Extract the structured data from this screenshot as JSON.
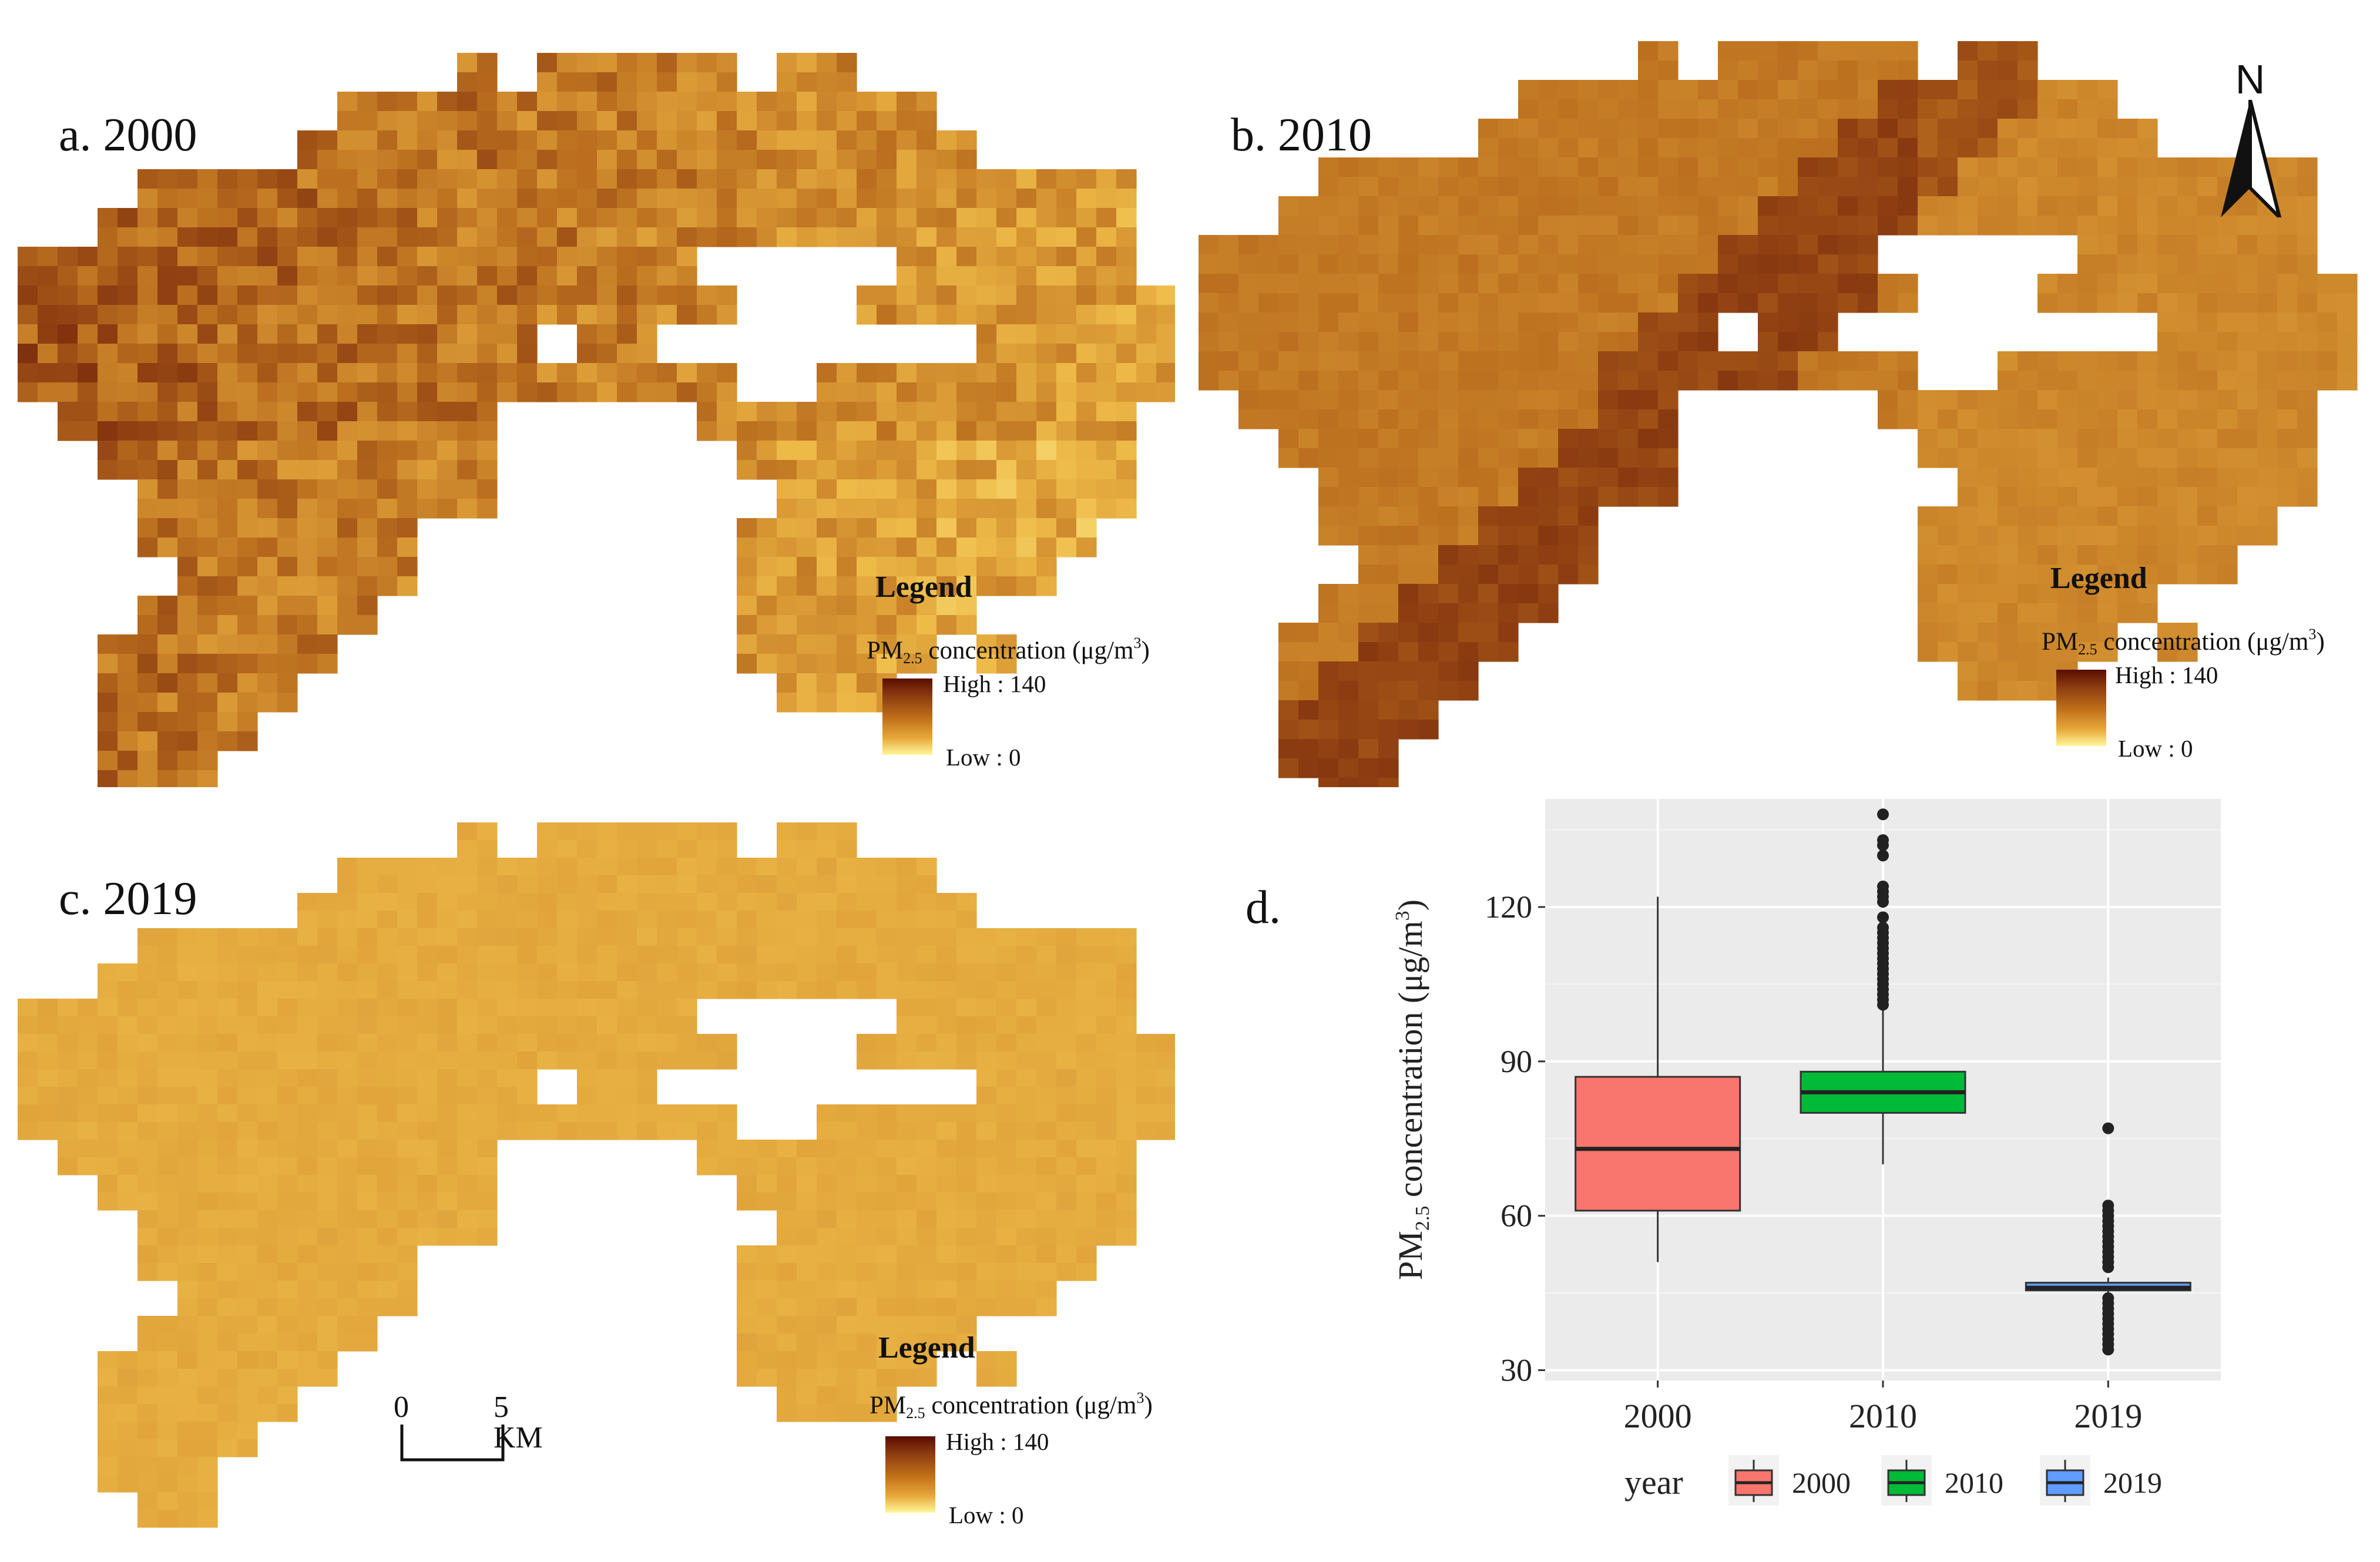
{
  "panels": [
    {
      "id": "a",
      "label": "a. 2000",
      "year": "2000"
    },
    {
      "id": "b",
      "label": "b. 2010",
      "year": "2010"
    },
    {
      "id": "c",
      "label": "c. 2019",
      "year": "2019"
    }
  ],
  "legend": {
    "heading": "Legend",
    "title_prefix": "PM",
    "title_sub": "2.5",
    "title_mid": " concentration (μg/m",
    "title_sup": "3",
    "title_end": ")",
    "high": "High : 140",
    "low": "Low : 0",
    "colors": [
      "#5a0d00",
      "#8a3a10",
      "#c07018",
      "#e8a83a",
      "#fff79a"
    ]
  },
  "north_arrow": {
    "label": "N"
  },
  "scale_bar": {
    "zero": "0",
    "five": "5 KM"
  },
  "panel_d_label": "d.",
  "chart_data": {
    "type": "boxplot",
    "title": "",
    "xlabel": "",
    "ylabel_prefix": "PM",
    "ylabel_sub": "2.5",
    "ylabel_mid": " concentration (μg/m",
    "ylabel_sup": "3",
    "ylabel_end": ")",
    "ylim": [
      28,
      141
    ],
    "yticks": [
      30,
      60,
      90,
      120
    ],
    "categories": [
      "2000",
      "2010",
      "2019"
    ],
    "series": [
      {
        "name": "2000",
        "color": "#f8766d",
        "min": 51,
        "q1": 61,
        "median": 73,
        "q3": 87,
        "max": 122,
        "outliers": []
      },
      {
        "name": "2010",
        "color": "#00ba38",
        "min": 70,
        "q1": 80,
        "median": 84,
        "q3": 88,
        "max": 100,
        "outliers": [
          101,
          102,
          103,
          104,
          105,
          106,
          107,
          108,
          109,
          110,
          111,
          112,
          113,
          114,
          115,
          116,
          118,
          121,
          122,
          123,
          124,
          130,
          132,
          133,
          138
        ]
      },
      {
        "name": "2019",
        "color": "#619cff",
        "min": 45,
        "q1": 45.5,
        "median": 46,
        "q3": 47,
        "max": 48,
        "outliers": [
          34,
          35,
          36,
          37,
          38,
          39,
          40,
          41,
          42,
          43,
          44,
          50,
          51,
          52,
          53,
          54,
          55,
          56,
          57,
          58,
          59,
          60,
          61,
          62,
          77
        ]
      }
    ],
    "legend_title": "year",
    "legend_position": "bottom",
    "grid": true
  }
}
